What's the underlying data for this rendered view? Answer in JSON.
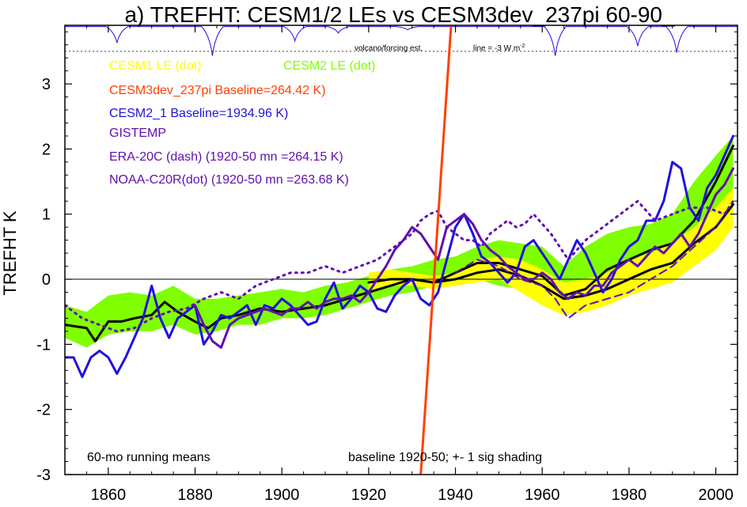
{
  "chart_data": {
    "type": "line",
    "title": "a) TREFHT: CESM1/2 LEs vs CESM3dev_237pi 60-90_",
    "ylabel": "TREFHT K",
    "xlabel": "",
    "xlim": [
      1850,
      2005
    ],
    "ylim": [
      -3,
      3.9
    ],
    "x_ticks": [
      1860,
      1880,
      1900,
      1920,
      1940,
      1960,
      1980,
      2000
    ],
    "y_ticks": [
      -3,
      -2,
      -1,
      0,
      1,
      2,
      3
    ],
    "zero_line": 0,
    "legend_entries": [
      {
        "text": "CESM1 LE (dot)",
        "color": "#ffff00"
      },
      {
        "text": "CESM2 LE (dot)",
        "color": "#80ff00"
      },
      {
        "text": "CESM3dev_237pi Baseline=264.42 K)",
        "color": "#ff4000"
      },
      {
        "text": "CESM2_1 Baseline=1934.96 K)",
        "color": "#2010e0"
      },
      {
        "text": "GISTEMP",
        "color": "#6010b0"
      },
      {
        "text": "ERA-20C (dash) (1920-50 mn =264.15 K)",
        "color": "#6010b0"
      },
      {
        "text": "NOAA-C20R(dot) (1920-50 mn =263.68 K)",
        "color": "#6010b0"
      }
    ],
    "annotations": {
      "volcano_label": "volcano/forcing est.",
      "line_label": "line = -3 W m",
      "line_label_sup": "-2",
      "note_left": "60-mo running means",
      "note_right": "baseline 1920-50; +- 1 sig shading"
    },
    "volcano_reference_level": 3.5,
    "volcano_dips": [
      {
        "year": 1862,
        "depth": 0.25
      },
      {
        "year": 1884,
        "depth": 0.45
      },
      {
        "year": 1903,
        "depth": 0.22
      },
      {
        "year": 1913,
        "depth": 0.1
      },
      {
        "year": 1929,
        "depth": 0.05
      },
      {
        "year": 1963,
        "depth": 0.45
      },
      {
        "year": 1982,
        "depth": 0.3
      },
      {
        "year": 1991,
        "depth": 0.4
      }
    ],
    "series": [
      {
        "name": "CESM2 LE (dot)",
        "kind": "band",
        "color": "#80ff00",
        "x": [
          1850,
          1855,
          1860,
          1865,
          1870,
          1875,
          1880,
          1885,
          1890,
          1895,
          1900,
          1905,
          1910,
          1915,
          1920,
          1925,
          1930,
          1935,
          1940,
          1945,
          1950,
          1955,
          1960,
          1965,
          1970,
          1975,
          1980,
          1985,
          1990,
          1995,
          2000,
          2004
        ],
        "lower": [
          -0.9,
          -1.05,
          -0.85,
          -0.8,
          -0.8,
          -0.7,
          -0.85,
          -0.8,
          -0.7,
          -0.7,
          -0.6,
          -0.6,
          -0.55,
          -0.45,
          -0.35,
          -0.25,
          -0.2,
          -0.1,
          -0.05,
          0.0,
          -0.1,
          -0.15,
          -0.1,
          -0.35,
          -0.2,
          -0.1,
          0.0,
          0.0,
          0.1,
          0.4,
          0.6,
          1.1
        ],
        "upper": [
          -0.4,
          -0.5,
          -0.25,
          -0.2,
          -0.25,
          -0.1,
          -0.3,
          -0.3,
          -0.25,
          -0.2,
          -0.15,
          -0.2,
          -0.1,
          -0.05,
          0.05,
          0.15,
          0.2,
          0.3,
          0.35,
          0.5,
          0.6,
          0.55,
          0.5,
          0.2,
          0.5,
          0.7,
          0.8,
          0.85,
          1.0,
          1.5,
          1.9,
          2.2
        ]
      },
      {
        "name": "CESM1 LE (dot)",
        "kind": "band",
        "color": "#ffff00",
        "x": [
          1920,
          1925,
          1930,
          1935,
          1940,
          1945,
          1950,
          1955,
          1960,
          1965,
          1970,
          1975,
          1980,
          1985,
          1990,
          1995,
          2000,
          2004
        ],
        "lower": [
          -0.2,
          -0.1,
          -0.1,
          -0.15,
          -0.1,
          -0.05,
          0.0,
          -0.2,
          -0.4,
          -0.55,
          -0.5,
          -0.4,
          -0.25,
          -0.15,
          -0.05,
          0.2,
          0.45,
          0.8
        ],
        "upper": [
          0.1,
          0.15,
          0.1,
          0.05,
          0.1,
          0.3,
          0.35,
          0.3,
          0.15,
          -0.05,
          0.0,
          0.1,
          0.3,
          0.4,
          0.55,
          0.8,
          1.1,
          1.4
        ]
      },
      {
        "name": "CESM2 LE mean",
        "kind": "line",
        "color": "#000000",
        "width": 3,
        "x": [
          1850,
          1855,
          1857,
          1860,
          1863,
          1866,
          1870,
          1873,
          1876,
          1880,
          1883,
          1886,
          1890,
          1895,
          1900,
          1905,
          1910,
          1915,
          1920,
          1925,
          1930,
          1935,
          1940,
          1945,
          1950,
          1955,
          1960,
          1965,
          1970,
          1975,
          1980,
          1985,
          1990,
          1995,
          2000,
          2004
        ],
        "values": [
          -0.7,
          -0.75,
          -0.95,
          -0.65,
          -0.65,
          -0.6,
          -0.55,
          -0.35,
          -0.5,
          -0.65,
          -0.75,
          -0.6,
          -0.55,
          -0.45,
          -0.5,
          -0.45,
          -0.4,
          -0.3,
          -0.2,
          -0.1,
          0.0,
          -0.05,
          0.1,
          0.25,
          0.25,
          0.15,
          0.05,
          -0.25,
          -0.15,
          0.15,
          0.3,
          0.45,
          0.55,
          0.9,
          1.5,
          2.05
        ]
      },
      {
        "name": "CESM1 LE mean",
        "kind": "line",
        "color": "#000000",
        "width": 3,
        "x": [
          1920,
          1925,
          1930,
          1935,
          1940,
          1945,
          1950,
          1955,
          1960,
          1965,
          1970,
          1975,
          1980,
          1985,
          1990,
          1995,
          2000,
          2004
        ],
        "values": [
          -0.05,
          0.0,
          0.0,
          -0.05,
          0.0,
          0.1,
          0.15,
          0.05,
          -0.1,
          -0.3,
          -0.25,
          -0.15,
          0.0,
          0.15,
          0.25,
          0.55,
          0.8,
          1.15
        ]
      },
      {
        "name": "CESM2_1",
        "kind": "line",
        "color": "#2010e0",
        "width": 3,
        "x": [
          1850,
          1852,
          1854,
          1856,
          1858,
          1860,
          1862,
          1864,
          1866,
          1868,
          1870,
          1872,
          1874,
          1876,
          1878,
          1880,
          1882,
          1884,
          1886,
          1888,
          1890,
          1892,
          1894,
          1896,
          1898,
          1900,
          1902,
          1904,
          1906,
          1908,
          1910,
          1912,
          1914,
          1916,
          1918,
          1920,
          1922,
          1924,
          1926,
          1928,
          1930,
          1932,
          1934,
          1936,
          1938,
          1940,
          1942,
          1944,
          1946,
          1948,
          1950,
          1952,
          1954,
          1956,
          1958,
          1960,
          1962,
          1964,
          1966,
          1968,
          1970,
          1972,
          1974,
          1976,
          1978,
          1980,
          1982,
          1984,
          1986,
          1988,
          1990,
          1992,
          1994,
          1996,
          1998,
          2000,
          2002,
          2004
        ],
        "values": [
          -1.2,
          -1.2,
          -1.5,
          -1.2,
          -1.1,
          -1.2,
          -1.45,
          -1.2,
          -0.9,
          -0.6,
          -0.1,
          -0.6,
          -0.9,
          -0.6,
          -0.5,
          -0.4,
          -1.0,
          -0.8,
          -0.55,
          -0.6,
          -0.5,
          -0.4,
          -0.7,
          -0.4,
          -0.45,
          -0.3,
          -0.4,
          -0.55,
          -0.7,
          -0.65,
          -0.3,
          -0.05,
          -0.45,
          -0.3,
          -0.1,
          -0.2,
          -0.45,
          -0.5,
          -0.25,
          -0.1,
          0.0,
          -0.3,
          -0.4,
          -0.2,
          0.3,
          0.8,
          1.0,
          0.7,
          0.35,
          0.25,
          0.1,
          -0.05,
          0.1,
          0.5,
          0.6,
          0.4,
          0.2,
          0.0,
          0.3,
          0.6,
          0.4,
          0.1,
          -0.2,
          0.0,
          0.3,
          0.5,
          0.6,
          0.9,
          0.9,
          1.2,
          1.8,
          1.7,
          1.1,
          0.9,
          1.4,
          1.6,
          1.9,
          2.2
        ]
      },
      {
        "name": "GISTEMP",
        "kind": "line",
        "color": "#6010b0",
        "width": 3,
        "x": [
          1880,
          1882,
          1884,
          1886,
          1888,
          1890,
          1892,
          1894,
          1896,
          1898,
          1900,
          1902,
          1904,
          1906,
          1908,
          1910,
          1912,
          1914,
          1916,
          1918,
          1920,
          1922,
          1924,
          1926,
          1928,
          1930,
          1932,
          1934,
          1936,
          1938,
          1940,
          1942,
          1944,
          1946,
          1948,
          1950,
          1952,
          1954,
          1956,
          1958,
          1960,
          1962,
          1964,
          1966,
          1968,
          1970,
          1972,
          1974,
          1976,
          1978,
          1980,
          1982,
          1984,
          1986,
          1988,
          1990,
          1992,
          1994,
          1996,
          1998,
          2000,
          2002,
          2004
        ],
        "values": [
          -0.4,
          -0.7,
          -0.95,
          -1.05,
          -0.7,
          -0.6,
          -0.55,
          -0.5,
          -0.45,
          -0.5,
          -0.55,
          -0.45,
          -0.45,
          -0.35,
          -0.45,
          -0.35,
          -0.3,
          -0.3,
          -0.25,
          -0.35,
          -0.2,
          0.0,
          0.2,
          0.45,
          0.6,
          0.8,
          0.7,
          0.5,
          0.3,
          0.8,
          0.9,
          1.0,
          0.85,
          0.6,
          0.45,
          0.35,
          0.2,
          0.1,
          0.0,
          0.0,
          0.1,
          0.0,
          -0.2,
          -0.3,
          -0.2,
          -0.25,
          -0.1,
          -0.1,
          0.1,
          0.2,
          0.3,
          0.2,
          0.35,
          0.5,
          0.4,
          0.55,
          0.7,
          0.5,
          0.7,
          1.0,
          1.3,
          1.45,
          1.7
        ]
      },
      {
        "name": "ERA-20C",
        "kind": "line",
        "color": "#6010b0",
        "width": 2,
        "dash": "10,6",
        "x": [
          1940,
          1945,
          1950,
          1955,
          1960,
          1963,
          1966,
          1970,
          1975,
          1980,
          1985,
          1990,
          1995,
          2000,
          2004
        ],
        "values": [
          0.1,
          0.3,
          0.2,
          0.0,
          -0.1,
          -0.3,
          -0.6,
          -0.4,
          -0.3,
          -0.2,
          0.0,
          0.2,
          0.5,
          0.8,
          1.2
        ]
      },
      {
        "name": "NOAA-C20R",
        "kind": "line",
        "color": "#6010b0",
        "width": 3,
        "dash": "2,6",
        "x": [
          1850,
          1854,
          1858,
          1862,
          1866,
          1870,
          1874,
          1878,
          1882,
          1886,
          1890,
          1894,
          1898,
          1902,
          1906,
          1910,
          1914,
          1918,
          1922,
          1926,
          1930,
          1932,
          1934,
          1936,
          1938,
          1940,
          1942,
          1944,
          1946,
          1948,
          1950,
          1952,
          1954,
          1956,
          1958,
          1960,
          1962,
          1964,
          1966,
          1968,
          1970,
          1974,
          1978,
          1982,
          1986,
          1990,
          1994,
          1998,
          2002,
          2004
        ],
        "values": [
          -0.4,
          -0.6,
          -0.7,
          -0.8,
          -0.75,
          -0.6,
          -0.5,
          -0.45,
          -0.3,
          -0.2,
          -0.3,
          -0.1,
          0.0,
          0.1,
          0.1,
          0.2,
          0.1,
          0.2,
          0.3,
          0.5,
          0.7,
          0.9,
          1.0,
          1.05,
          0.8,
          0.7,
          0.6,
          0.6,
          0.5,
          0.7,
          0.8,
          0.9,
          0.8,
          0.85,
          1.0,
          0.85,
          0.7,
          0.5,
          0.3,
          0.45,
          0.6,
          0.8,
          1.0,
          1.2,
          0.9,
          1.0,
          1.1,
          1.1,
          1.0,
          1.2
        ]
      },
      {
        "name": "CESM3dev_237pi",
        "kind": "line",
        "color": "#ff4000",
        "width": 3,
        "x": [
          1932,
          1939
        ],
        "values": [
          -3.0,
          3.9
        ]
      }
    ]
  }
}
